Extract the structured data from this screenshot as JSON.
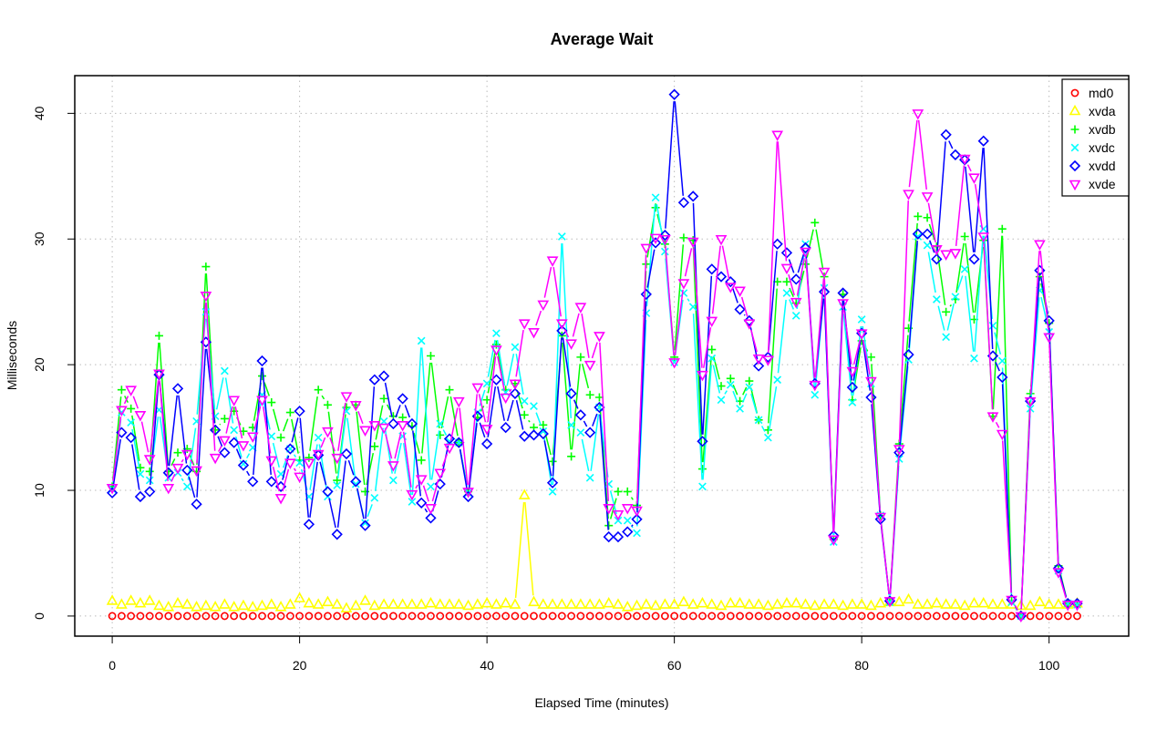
{
  "chart_data": {
    "type": "line",
    "title": "Average Wait",
    "xlabel": "Elapsed Time (minutes)",
    "ylabel": "Milliseconds",
    "xlim": [
      -4,
      108.5
    ],
    "ylim": [
      -1.6,
      43
    ],
    "xticks": [
      0,
      20,
      40,
      60,
      80,
      100
    ],
    "yticks": [
      0,
      10,
      20,
      30,
      40
    ],
    "grid": true,
    "legend_position": "top-right",
    "x": [
      0,
      1,
      2,
      3,
      4,
      5,
      6,
      7,
      8,
      9,
      10,
      11,
      12,
      13,
      14,
      15,
      16,
      17,
      18,
      19,
      20,
      21,
      22,
      23,
      24,
      25,
      26,
      27,
      28,
      29,
      30,
      31,
      32,
      33,
      34,
      35,
      36,
      37,
      38,
      39,
      40,
      41,
      42,
      43,
      44,
      45,
      46,
      47,
      48,
      49,
      50,
      51,
      52,
      53,
      54,
      55,
      56,
      57,
      58,
      59,
      60,
      61,
      62,
      63,
      64,
      65,
      66,
      67,
      68,
      69,
      70,
      71,
      72,
      73,
      74,
      75,
      76,
      77,
      78,
      79,
      80,
      81,
      82,
      83,
      84,
      85,
      86,
      87,
      88,
      89,
      90,
      91,
      92,
      93,
      94,
      95,
      96,
      97,
      98,
      99,
      100,
      101,
      102,
      103
    ],
    "series": [
      {
        "name": "md0",
        "color": "#ff0000",
        "marker": "circle",
        "values": [
          0,
          0,
          0,
          0,
          0,
          0,
          0,
          0,
          0,
          0,
          0,
          0,
          0,
          0,
          0,
          0,
          0,
          0,
          0,
          0,
          0,
          0,
          0,
          0,
          0,
          0,
          0,
          0,
          0,
          0,
          0,
          0,
          0,
          0,
          0,
          0,
          0,
          0,
          0,
          0,
          0,
          0,
          0,
          0,
          0,
          0,
          0,
          0,
          0,
          0,
          0,
          0,
          0,
          0,
          0,
          0,
          0,
          0,
          0,
          0,
          0,
          0,
          0,
          0,
          0,
          0,
          0,
          0,
          0,
          0,
          0,
          0,
          0,
          0,
          0,
          0,
          0,
          0,
          0,
          0,
          0,
          0,
          0,
          0,
          0,
          0,
          0,
          0,
          0,
          0,
          0,
          0,
          0,
          0,
          0,
          0,
          0,
          0,
          0,
          0,
          0,
          0,
          0,
          0
        ]
      },
      {
        "name": "xvda",
        "color": "#ffff00",
        "marker": "triangle",
        "values": [
          1.2,
          0.9,
          1.2,
          1.0,
          1.2,
          0.8,
          0.7,
          1.0,
          0.9,
          0.7,
          0.8,
          0.7,
          0.9,
          0.7,
          0.8,
          0.7,
          0.8,
          0.9,
          0.7,
          0.9,
          1.4,
          1.0,
          0.9,
          1.1,
          0.9,
          0.6,
          0.8,
          1.2,
          0.8,
          0.9,
          0.9,
          0.9,
          0.9,
          0.9,
          1.0,
          0.9,
          0.9,
          0.9,
          0.8,
          0.9,
          1.0,
          0.9,
          1.0,
          0.9,
          9.6,
          1.1,
          0.9,
          0.9,
          0.9,
          0.9,
          0.9,
          0.9,
          0.9,
          1.0,
          0.9,
          0.7,
          0.8,
          0.9,
          0.8,
          0.9,
          0.9,
          1.1,
          0.9,
          1.0,
          0.9,
          0.8,
          1.0,
          1.0,
          0.9,
          0.9,
          0.8,
          0.9,
          1.0,
          1.0,
          0.9,
          0.8,
          0.9,
          0.9,
          0.8,
          0.9,
          0.9,
          0.8,
          1.0,
          1.1,
          1.1,
          1.3,
          0.9,
          0.9,
          1.0,
          0.9,
          0.9,
          0.8,
          1.0,
          1.0,
          0.9,
          0.9,
          0.9,
          0.8,
          0.8,
          1.1,
          0.9,
          0.9,
          0.9,
          1.0
        ]
      },
      {
        "name": "xvdb",
        "color": "#00ff00",
        "marker": "plus",
        "values": [
          10.3,
          18.0,
          16.5,
          11.8,
          11.5,
          22.3,
          11.5,
          13.0,
          13.3,
          11.5,
          27.8,
          14.8,
          15.7,
          16.3,
          14.7,
          15.0,
          19.1,
          17.0,
          14.2,
          16.2,
          12.4,
          12.6,
          18.0,
          16.8,
          10.8,
          16.6,
          16.8,
          9.9,
          13.5,
          17.3,
          15.9,
          15.8,
          15.1,
          12.4,
          20.7,
          14.4,
          18.0,
          13.8,
          9.9,
          15.8,
          17.2,
          21.6,
          18.0,
          18.5,
          16.0,
          15.0,
          15.2,
          12.3,
          22.3,
          12.7,
          20.6,
          17.6,
          17.4,
          7.2,
          9.9,
          9.9,
          8.8,
          28.0,
          32.5,
          29.6,
          20.6,
          30.1,
          29.9,
          11.7,
          21.2,
          18.3,
          18.9,
          17.1,
          18.7,
          15.6,
          14.8,
          26.6,
          26.6,
          24.9,
          28.0,
          31.3,
          27.0,
          6.1,
          25.6,
          17.2,
          21.9,
          20.6,
          8.0,
          1.2,
          13.7,
          22.9,
          31.8,
          31.7,
          29.4,
          24.2,
          25.2,
          30.2,
          23.6,
          29.9,
          15.9,
          30.8,
          1.2,
          0.0,
          17.7,
          27.0,
          23.3,
          4.0,
          1.0,
          0.9
        ]
      },
      {
        "name": "xvdc",
        "color": "#00ffff",
        "marker": "cross",
        "values": [
          10.1,
          16.2,
          15.4,
          11.3,
          10.8,
          16.4,
          11.0,
          11.4,
          10.3,
          15.5,
          24.2,
          15.9,
          19.5,
          14.8,
          12.1,
          13.4,
          17.6,
          14.3,
          11.3,
          13.3,
          12.2,
          9.5,
          14.2,
          9.5,
          10.4,
          16.3,
          10.5,
          7.4,
          9.4,
          15.5,
          10.8,
          14.3,
          9.1,
          21.9,
          10.3,
          15.3,
          13.9,
          13.8,
          9.8,
          16.2,
          18.5,
          22.5,
          17.8,
          21.4,
          17.1,
          16.7,
          14.7,
          9.9,
          30.2,
          15.2,
          14.6,
          11.0,
          16.6,
          10.5,
          7.6,
          7.6,
          6.6,
          24.1,
          33.3,
          29.0,
          20.2,
          25.7,
          24.6,
          10.3,
          20.5,
          17.2,
          18.4,
          16.5,
          18.2,
          15.6,
          14.2,
          18.8,
          25.7,
          23.9,
          29.6,
          17.6,
          26.1,
          5.9,
          24.6,
          17.0,
          23.6,
          18.5,
          8.0,
          1.1,
          12.5,
          20.4,
          30.2,
          29.5,
          25.2,
          22.2,
          25.4,
          27.6,
          20.5,
          30.8,
          23.1,
          20.3,
          1.1,
          0.0,
          16.5,
          25.9,
          22.6,
          3.6,
          1.0,
          0.9
        ]
      },
      {
        "name": "xvdd",
        "color": "#0000ff",
        "marker": "diamond",
        "values": [
          9.8,
          14.6,
          14.2,
          9.5,
          9.9,
          19.2,
          11.4,
          18.1,
          11.6,
          8.9,
          21.8,
          14.8,
          13.0,
          13.8,
          12.0,
          10.7,
          20.3,
          10.7,
          10.3,
          13.3,
          16.3,
          7.3,
          12.8,
          9.9,
          6.5,
          12.9,
          10.7,
          7.2,
          18.8,
          19.1,
          15.3,
          17.3,
          15.3,
          9.0,
          7.8,
          10.5,
          14.1,
          13.8,
          9.5,
          15.9,
          13.7,
          18.8,
          15.0,
          17.7,
          14.3,
          14.4,
          14.5,
          10.6,
          22.7,
          17.7,
          16.0,
          14.6,
          16.6,
          6.3,
          6.3,
          6.7,
          7.7,
          25.6,
          29.7,
          30.3,
          41.5,
          32.9,
          33.4,
          13.9,
          27.6,
          27.0,
          26.6,
          24.4,
          23.5,
          19.9,
          20.6,
          29.6,
          28.9,
          26.8,
          29.3,
          18.5,
          25.8,
          6.4,
          25.7,
          18.2,
          22.5,
          17.4,
          7.7,
          1.2,
          13.0,
          20.8,
          30.4,
          30.4,
          28.4,
          38.3,
          36.7,
          36.3,
          28.4,
          37.8,
          20.7,
          19.0,
          1.3,
          0.0,
          17.1,
          27.5,
          23.5,
          3.8,
          1.0,
          1.0
        ]
      },
      {
        "name": "xvde",
        "color": "#ff00ff",
        "marker": "triangle-down",
        "values": [
          10.2,
          16.4,
          18.0,
          16.0,
          12.5,
          19.3,
          10.2,
          11.8,
          12.9,
          11.6,
          25.5,
          12.6,
          14.0,
          17.2,
          13.6,
          14.3,
          17.2,
          12.4,
          9.4,
          12.2,
          11.1,
          12.2,
          12.9,
          14.7,
          12.6,
          17.5,
          16.8,
          14.8,
          15.2,
          15.0,
          12.0,
          15.2,
          9.7,
          10.9,
          8.6,
          11.4,
          13.4,
          17.1,
          9.9,
          18.2,
          14.9,
          21.2,
          17.4,
          18.5,
          23.3,
          22.6,
          24.8,
          28.3,
          23.3,
          21.7,
          24.6,
          20.0,
          22.3,
          8.6,
          8.1,
          8.6,
          8.4,
          29.3,
          30.1,
          30.0,
          20.2,
          26.5,
          29.8,
          19.2,
          23.5,
          30.0,
          26.2,
          25.9,
          23.3,
          20.5,
          20.4,
          38.3,
          27.7,
          25.0,
          29.0,
          18.4,
          27.4,
          6.1,
          24.9,
          19.5,
          22.5,
          18.7,
          7.9,
          1.2,
          13.3,
          33.6,
          40.0,
          33.4,
          29.2,
          28.8,
          28.9,
          36.4,
          34.9,
          30.2,
          15.9,
          14.5,
          1.3,
          0.0,
          17.1,
          29.6,
          22.2,
          3.5,
          0.9,
          0.9
        ]
      }
    ]
  }
}
